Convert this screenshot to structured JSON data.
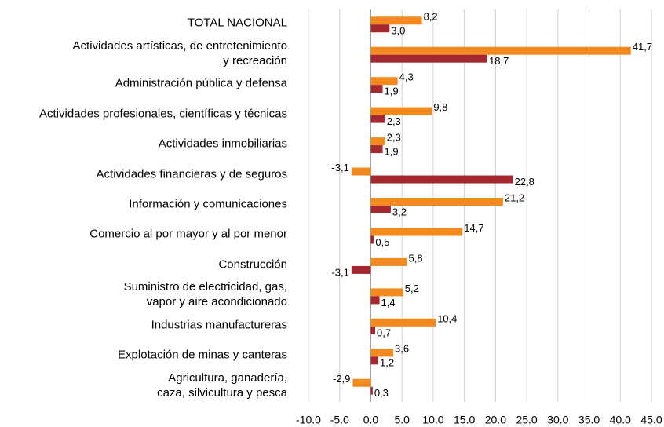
{
  "chart_data": {
    "type": "hbar",
    "categories": [
      "TOTAL NACIONAL",
      "Actividades artísticas, de entretenimiento\ny recreación",
      "Administración pública y defensa",
      "Actividades profesionales, científicas y técnicas",
      "Actividades inmobiliarias",
      "Actividades financieras y de seguros",
      "Información y comunicaciones",
      "Comercio al por mayor y al por menor",
      "Construcción",
      "Suministro de electricidad, gas,\nvapor y aire acondicionado",
      "Industrias manufactureras",
      "Explotación de minas y canteras",
      "Agricultura, ganadería,\ncaza, silvicultura y pesca"
    ],
    "series": [
      {
        "color": "#f28a1f",
        "values": [
          8.2,
          41.7,
          4.3,
          9.8,
          2.3,
          -3.1,
          21.2,
          14.7,
          5.8,
          5.2,
          10.4,
          3.6,
          -2.9
        ],
        "value_labels": [
          "8,2",
          "41,7",
          "4,3",
          "9,8",
          "2,3",
          "-3,1",
          "21,2",
          "14,7",
          "5,8",
          "5,2",
          "10,4",
          "3,6",
          "-2,9"
        ]
      },
      {
        "color": "#a3282f",
        "values": [
          3.0,
          18.7,
          1.9,
          2.3,
          1.9,
          22.8,
          3.2,
          0.5,
          -3.1,
          1.4,
          0.7,
          1.2,
          0.3
        ],
        "value_labels": [
          "3,0",
          "18,7",
          "1,9",
          "2,3",
          "1,9",
          "22,8",
          "3,2",
          "0,5",
          "-3,1",
          "1,4",
          "0,7",
          "1,2",
          "0,3"
        ]
      }
    ],
    "xlim": [
      -10,
      45
    ],
    "xticks": [
      {
        "value": -10,
        "label": "-10.0"
      },
      {
        "value": -5,
        "label": "-5.0"
      },
      {
        "value": 0,
        "label": "0.0"
      },
      {
        "value": 5,
        "label": "5.0"
      },
      {
        "value": 10,
        "label": "10.0"
      },
      {
        "value": 15,
        "label": "15.0"
      },
      {
        "value": 20,
        "label": "20.0"
      },
      {
        "value": 25,
        "label": "25.0"
      },
      {
        "value": 30,
        "label": "30.0"
      },
      {
        "value": 35,
        "label": "35.0"
      },
      {
        "value": 40,
        "label": "40.0"
      },
      {
        "value": 45,
        "label": "45.0"
      }
    ],
    "grid": true
  }
}
